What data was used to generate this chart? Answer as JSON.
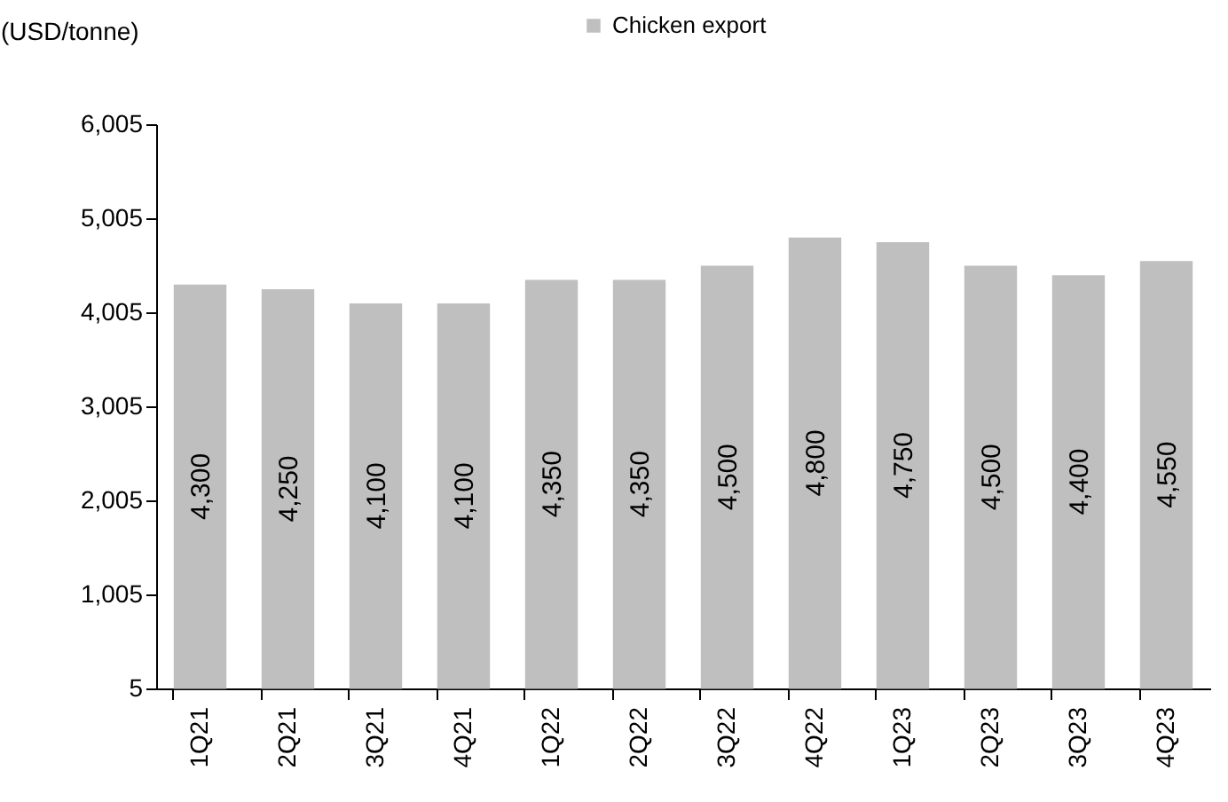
{
  "chart_data": {
    "type": "bar",
    "ylabel": "(USD/tonne)",
    "categories": [
      "1Q21",
      "2Q21",
      "3Q21",
      "4Q21",
      "1Q22",
      "2Q22",
      "3Q22",
      "4Q22",
      "1Q23",
      "2Q23",
      "3Q23",
      "4Q23"
    ],
    "series": [
      {
        "name": "Chicken export",
        "color": "#bfbfbf",
        "values": [
          4300,
          4250,
          4100,
          4100,
          4350,
          4350,
          4500,
          4800,
          4750,
          4500,
          4400,
          4550
        ],
        "value_labels": [
          "4,300",
          "4,250",
          "4,100",
          "4,100",
          "4,350",
          "4,350",
          "4,500",
          "4,800",
          "4,750",
          "4,500",
          "4,400",
          "4,550"
        ]
      }
    ],
    "ylim": [
      5,
      6005
    ],
    "yticks": [
      5,
      {
        "value": 1005,
        "label": "1,005"
      },
      {
        "value": 2005,
        "label": "2,005"
      },
      {
        "value": 3005,
        "label": "3,005"
      },
      {
        "value": 4005,
        "label": "4,005"
      },
      {
        "value": 5005,
        "label": "5,005"
      },
      {
        "value": 6005,
        "label": "6,005"
      }
    ],
    "grid": false,
    "legend": "top"
  }
}
